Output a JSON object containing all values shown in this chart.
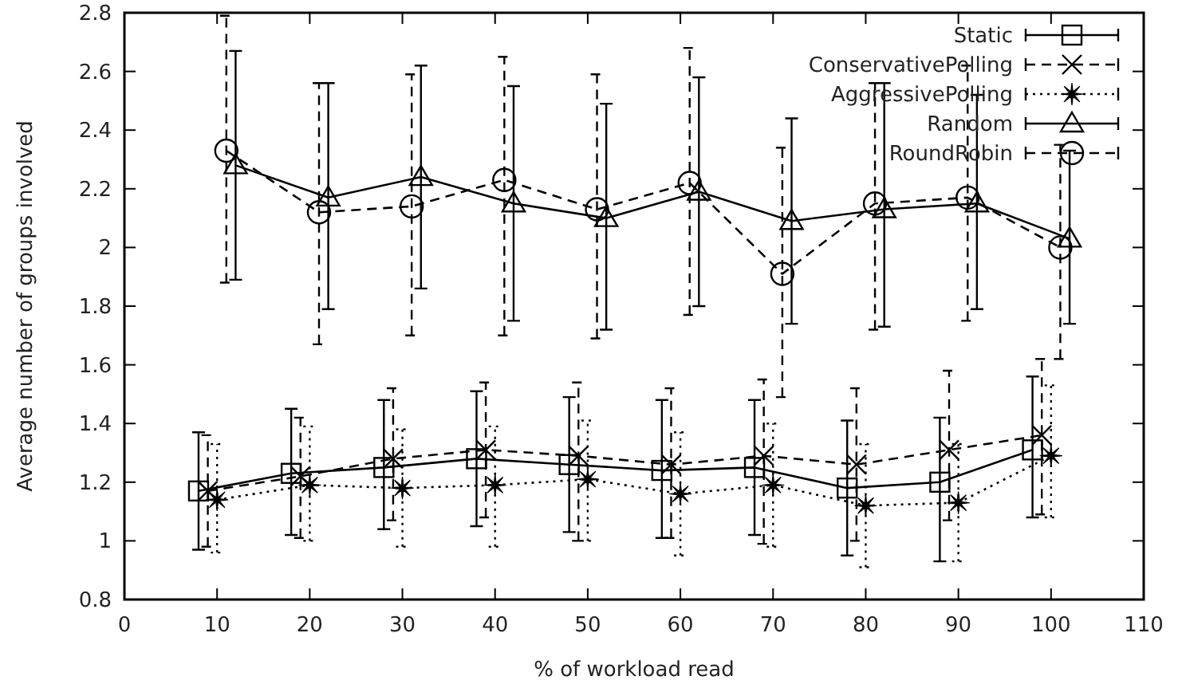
{
  "chart_data": {
    "type": "line",
    "xlabel": "% of workload read",
    "ylabel": "Average number of groups involved",
    "xlim": [
      0,
      110
    ],
    "xticks": [
      0,
      10,
      20,
      30,
      40,
      50,
      60,
      70,
      80,
      90,
      100,
      110
    ],
    "ylim": [
      0.8,
      2.8
    ],
    "yticks": [
      0.8,
      1,
      1.2,
      1.4,
      1.6,
      1.8,
      2,
      2.2,
      2.4,
      2.6,
      2.8
    ],
    "grid": false,
    "legend": "top right",
    "series": [
      {
        "name": "Static",
        "color": "#000000",
        "marker": "square",
        "line_style": "solid",
        "x": [
          8,
          18,
          28,
          38,
          48,
          58,
          68,
          78,
          88,
          98
        ],
        "values": [
          1.17,
          1.23,
          1.25,
          1.28,
          1.26,
          1.24,
          1.25,
          1.18,
          1.2,
          1.31
        ],
        "errors": [
          [
            0.97,
            1.37
          ],
          [
            1.02,
            1.45
          ],
          [
            1.04,
            1.48
          ],
          [
            1.05,
            1.51
          ],
          [
            1.03,
            1.49
          ],
          [
            1.01,
            1.48
          ],
          [
            1.02,
            1.48
          ],
          [
            0.95,
            1.41
          ],
          [
            0.93,
            1.42
          ],
          [
            1.08,
            1.56
          ]
        ]
      },
      {
        "name": "ConservativePolling",
        "color": "#000000",
        "marker": "cross",
        "line_style": "dashed",
        "x": [
          9,
          19,
          29,
          39,
          49,
          59,
          69,
          79,
          89,
          99
        ],
        "values": [
          1.17,
          1.22,
          1.28,
          1.31,
          1.29,
          1.26,
          1.29,
          1.26,
          1.31,
          1.36
        ],
        "errors": [
          [
            0.98,
            1.36
          ],
          [
            1.01,
            1.42
          ],
          [
            1.07,
            1.52
          ],
          [
            1.08,
            1.54
          ],
          [
            1.0,
            1.54
          ],
          [
            1.01,
            1.52
          ],
          [
            0.99,
            1.55
          ],
          [
            1.0,
            1.52
          ],
          [
            1.07,
            1.58
          ],
          [
            1.09,
            1.62
          ]
        ]
      },
      {
        "name": "AggressivePolling",
        "color": "#000000",
        "marker": "star",
        "line_style": "dotted",
        "x": [
          10,
          20,
          30,
          40,
          50,
          60,
          70,
          80,
          90,
          100
        ],
        "values": [
          1.14,
          1.19,
          1.18,
          1.19,
          1.21,
          1.16,
          1.19,
          1.12,
          1.13,
          1.29
        ],
        "errors": [
          [
            0.96,
            1.33
          ],
          [
            1.0,
            1.39
          ],
          [
            0.98,
            1.38
          ],
          [
            0.98,
            1.39
          ],
          [
            1.0,
            1.41
          ],
          [
            0.95,
            1.37
          ],
          [
            0.98,
            1.4
          ],
          [
            0.91,
            1.33
          ],
          [
            0.93,
            1.33
          ],
          [
            1.08,
            1.53
          ]
        ]
      },
      {
        "name": "Random",
        "color": "#000000",
        "marker": "triangle",
        "line_style": "solid",
        "x": [
          12,
          22,
          32,
          42,
          52,
          62,
          72,
          82,
          92,
          102
        ],
        "values": [
          2.28,
          2.17,
          2.24,
          2.15,
          2.1,
          2.19,
          2.09,
          2.13,
          2.15,
          2.03
        ],
        "errors": [
          [
            1.89,
            2.67
          ],
          [
            1.79,
            2.56
          ],
          [
            1.86,
            2.62
          ],
          [
            1.75,
            2.55
          ],
          [
            1.72,
            2.49
          ],
          [
            1.8,
            2.58
          ],
          [
            1.74,
            2.44
          ],
          [
            1.73,
            2.56
          ],
          [
            1.79,
            2.52
          ],
          [
            1.74,
            2.33
          ]
        ]
      },
      {
        "name": "RoundRobin",
        "color": "#000000",
        "marker": "circle",
        "line_style": "dashed",
        "x": [
          11,
          21,
          31,
          41,
          51,
          61,
          71,
          81,
          91,
          101
        ],
        "values": [
          2.33,
          2.12,
          2.14,
          2.23,
          2.13,
          2.22,
          1.91,
          2.15,
          2.17,
          2.0
        ],
        "errors": [
          [
            1.88,
            2.79
          ],
          [
            1.67,
            2.56
          ],
          [
            1.7,
            2.59
          ],
          [
            1.7,
            2.65
          ],
          [
            1.69,
            2.59
          ],
          [
            1.77,
            2.68
          ],
          [
            1.49,
            2.34
          ],
          [
            1.72,
            2.56
          ],
          [
            1.75,
            2.62
          ],
          [
            1.62,
            2.35
          ]
        ]
      }
    ]
  }
}
